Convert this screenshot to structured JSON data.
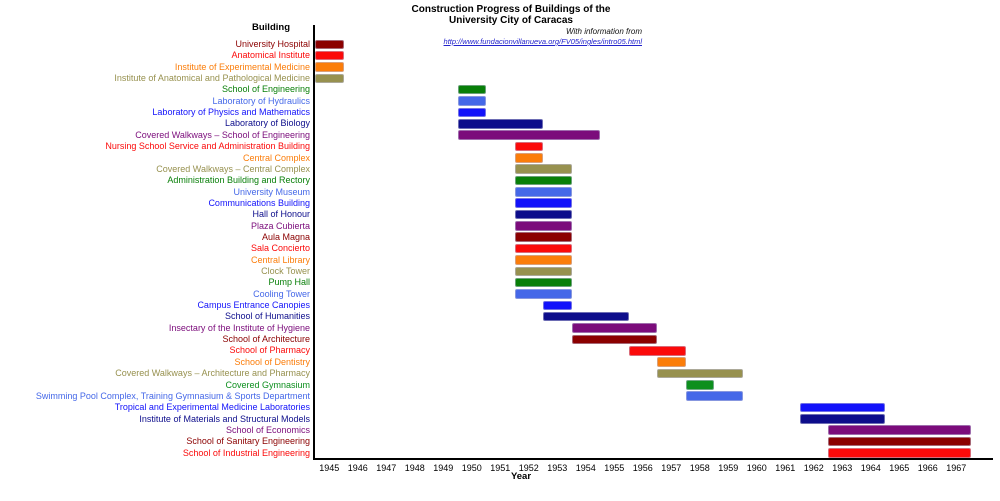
{
  "colors": {
    "axis": "#000000",
    "title": "#000000",
    "link_blue": "#2222CC",
    "background": "#FFFFFF"
  },
  "chart_data": {
    "type": "bar",
    "variant": "gantt-timeline",
    "title_line1": "Construction Progress of Buildings of the",
    "title_line2": "University City of Caracas",
    "subtitle": "With information from",
    "link": "http://www.fundacionvillanueva.org/FV05/ingles/intro05.html",
    "ylabel_header": "Building",
    "xlabel": "Year",
    "x_ticks": [
      1945,
      1946,
      1947,
      1948,
      1949,
      1950,
      1951,
      1952,
      1953,
      1954,
      1955,
      1956,
      1957,
      1958,
      1959,
      1960,
      1961,
      1962,
      1963,
      1964,
      1965,
      1966,
      1967
    ],
    "x_range": [
      1944.5,
      1968.3
    ],
    "grid": false,
    "legend": "none",
    "rows": [
      {
        "label": "University Hospital",
        "color": "#8B0000",
        "start": 1945,
        "end": 1945
      },
      {
        "label": "Anatomical Institute",
        "color": "#FB0A0A",
        "start": 1945,
        "end": 1945
      },
      {
        "label": "Institute of Experimental Medicine",
        "color": "#FB7D0A",
        "start": 1945,
        "end": 1945
      },
      {
        "label": "Institute of Anatomical and Pathological Medicine",
        "color": "#97914F",
        "start": 1945,
        "end": 1945
      },
      {
        "label": "School of Engineering",
        "color": "#087F08",
        "start": 1950,
        "end": 1950
      },
      {
        "label": "Laboratory of Hydraulics",
        "color": "#4568E8",
        "start": 1950,
        "end": 1950
      },
      {
        "label": "Laboratory of Physics and Mathematics",
        "color": "#1212FA",
        "start": 1950,
        "end": 1950
      },
      {
        "label": "Laboratory of Biology",
        "color": "#0D0D8B",
        "start": 1950,
        "end": 1952
      },
      {
        "label": "Covered Walkways – School of Engineering",
        "color": "#7B0C7B",
        "start": 1950,
        "end": 1954
      },
      {
        "label": "Nursing School Service and Administration Building",
        "color": "#FB0A0A",
        "start": 1952,
        "end": 1952
      },
      {
        "label": "Central Complex",
        "color": "#FB7D0A",
        "start": 1952,
        "end": 1952
      },
      {
        "label": "Covered Walkways – Central Complex",
        "color": "#97914F",
        "start": 1952,
        "end": 1953
      },
      {
        "label": "Administration Building and Rectory",
        "color": "#087F08",
        "start": 1952,
        "end": 1953
      },
      {
        "label": "University Museum",
        "color": "#4568E8",
        "start": 1952,
        "end": 1953
      },
      {
        "label": "Communications Building",
        "color": "#1212FA",
        "start": 1952,
        "end": 1953
      },
      {
        "label": "Hall of Honour",
        "color": "#0D0D8B",
        "start": 1952,
        "end": 1953
      },
      {
        "label": "Plaza Cubierta",
        "color": "#7B0C7B",
        "start": 1952,
        "end": 1953
      },
      {
        "label": "Aula Magna",
        "color": "#8B0000",
        "start": 1952,
        "end": 1953
      },
      {
        "label": "Sala Concierto",
        "color": "#FB0A0A",
        "start": 1952,
        "end": 1953
      },
      {
        "label": "Central Library",
        "color": "#FB7D0A",
        "start": 1952,
        "end": 1953
      },
      {
        "label": "Clock Tower",
        "color": "#97914F",
        "start": 1952,
        "end": 1953
      },
      {
        "label": "Pump Hall",
        "color": "#087F08",
        "start": 1952,
        "end": 1953
      },
      {
        "label": "Cooling Tower",
        "color": "#4568E8",
        "start": 1952,
        "end": 1953
      },
      {
        "label": "Campus Entrance Canopies",
        "color": "#1212FA",
        "start": 1953,
        "end": 1953
      },
      {
        "label": "School of Humanities",
        "color": "#0D0D8B",
        "start": 1953,
        "end": 1955
      },
      {
        "label": "Insectary of the Institute of Hygiene",
        "color": "#7B0C7B",
        "start": 1954,
        "end": 1956
      },
      {
        "label": "School of Architecture",
        "color": "#8B0000",
        "start": 1954,
        "end": 1956
      },
      {
        "label": "School of Pharmacy",
        "color": "#FB0A0A",
        "start": 1956,
        "end": 1957
      },
      {
        "label": "School of Dentistry",
        "color": "#FB7D0A",
        "start": 1957,
        "end": 1957
      },
      {
        "label": "Covered Walkways – Architecture and Pharmacy",
        "color": "#97914F",
        "start": 1957,
        "end": 1959
      },
      {
        "label": "Covered Gymnasium",
        "color": "#0D8F1E",
        "start": 1958,
        "end": 1958
      },
      {
        "label": "Swimming Pool Complex, Training Gymnasium & Sports Department",
        "color": "#4568E8",
        "start": 1958,
        "end": 1959
      },
      {
        "label": "Tropical and Experimental Medicine Laboratories",
        "color": "#1212FA",
        "start": 1962,
        "end": 1964
      },
      {
        "label": "Institute of Materials and Structural Models",
        "color": "#0D0D8B",
        "start": 1962,
        "end": 1964
      },
      {
        "label": "School of Economics",
        "color": "#7B0C7B",
        "start": 1963,
        "end": 1967
      },
      {
        "label": "School of Sanitary Engineering",
        "color": "#8B0000",
        "start": 1963,
        "end": 1967
      },
      {
        "label": "School of Industrial Engineering",
        "color": "#FB0A0A",
        "start": 1963,
        "end": 1967
      }
    ]
  }
}
